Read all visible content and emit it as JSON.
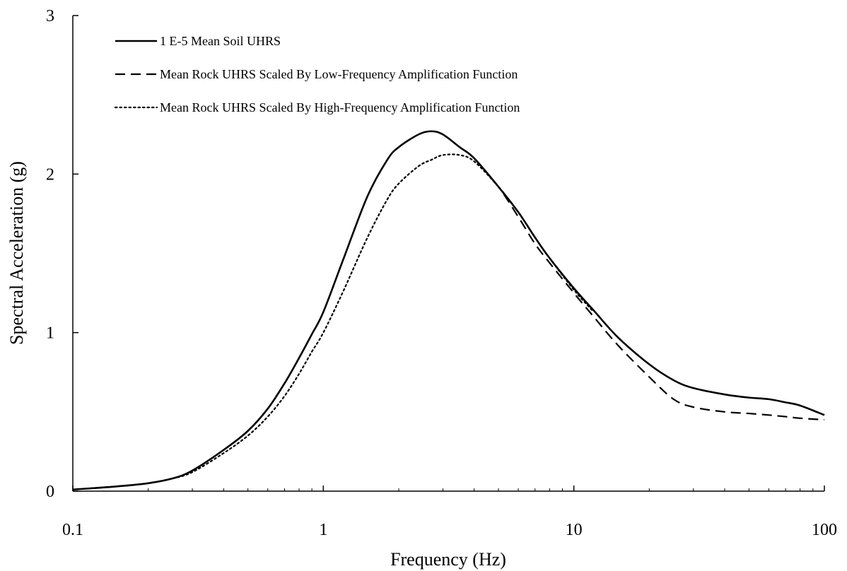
{
  "chart_data": {
    "type": "line",
    "xlabel": "Frequency (Hz)",
    "ylabel": "Spectral Acceleration (g)",
    "x_scale": "log",
    "xlim": [
      0.1,
      100
    ],
    "ylim": [
      0,
      3
    ],
    "x_ticks": [
      {
        "value": 0.1,
        "label": "0.1"
      },
      {
        "value": 1,
        "label": "1"
      },
      {
        "value": 10,
        "label": "10"
      },
      {
        "value": 100,
        "label": "100"
      }
    ],
    "y_ticks": [
      {
        "value": 0,
        "label": "0"
      },
      {
        "value": 1,
        "label": "1"
      },
      {
        "value": 2,
        "label": "2"
      },
      {
        "value": 3,
        "label": "3"
      }
    ],
    "grid": false,
    "legend_position": "top-left",
    "series": [
      {
        "name": "1 E-5 Mean Soil UHRS",
        "style": "solid",
        "color": "#000000",
        "x": [
          0.1,
          0.15,
          0.2,
          0.25,
          0.3,
          0.4,
          0.5,
          0.6,
          0.7,
          0.8,
          0.9,
          1.0,
          1.2,
          1.5,
          1.8,
          2.0,
          2.4,
          2.7,
          3.0,
          3.5,
          4.0,
          5.0,
          6.0,
          7.0,
          8.0,
          10,
          12,
          15,
          20,
          25,
          30,
          40,
          50,
          60,
          70,
          80,
          100
        ],
        "y": [
          0.01,
          0.03,
          0.05,
          0.08,
          0.13,
          0.26,
          0.38,
          0.52,
          0.68,
          0.84,
          0.99,
          1.13,
          1.46,
          1.86,
          2.09,
          2.17,
          2.25,
          2.27,
          2.25,
          2.17,
          2.1,
          1.92,
          1.76,
          1.6,
          1.47,
          1.28,
          1.14,
          0.97,
          0.8,
          0.7,
          0.65,
          0.61,
          0.59,
          0.58,
          0.56,
          0.54,
          0.48
        ]
      },
      {
        "name": "Mean Rock UHRS Scaled By Low-Frequency Amplification Function",
        "style": "dashed",
        "color": "#000000",
        "x": [
          4.0,
          5.0,
          6.0,
          7.0,
          8.0,
          10,
          12,
          15,
          20,
          25,
          30,
          40,
          50,
          60,
          70,
          80,
          100
        ],
        "y": [
          2.1,
          1.92,
          1.73,
          1.56,
          1.44,
          1.25,
          1.1,
          0.92,
          0.72,
          0.58,
          0.53,
          0.5,
          0.49,
          0.48,
          0.47,
          0.46,
          0.45
        ]
      },
      {
        "name": "Mean Rock UHRS Scaled By High-Frequency Amplification Function",
        "style": "dotted",
        "color": "#000000",
        "x": [
          0.1,
          0.15,
          0.2,
          0.25,
          0.3,
          0.4,
          0.5,
          0.6,
          0.7,
          0.8,
          0.9,
          1.0,
          1.2,
          1.5,
          1.8,
          2.0,
          2.4,
          2.7,
          3.0,
          3.5,
          4.0,
          5.0,
          6.0,
          7.0,
          8.0,
          10,
          12
        ],
        "y": [
          0.01,
          0.03,
          0.05,
          0.08,
          0.12,
          0.24,
          0.35,
          0.47,
          0.6,
          0.74,
          0.88,
          1.0,
          1.26,
          1.6,
          1.84,
          1.94,
          2.05,
          2.09,
          2.12,
          2.12,
          2.08,
          1.92,
          1.76,
          1.6,
          1.47,
          1.27,
          1.13
        ]
      }
    ]
  }
}
